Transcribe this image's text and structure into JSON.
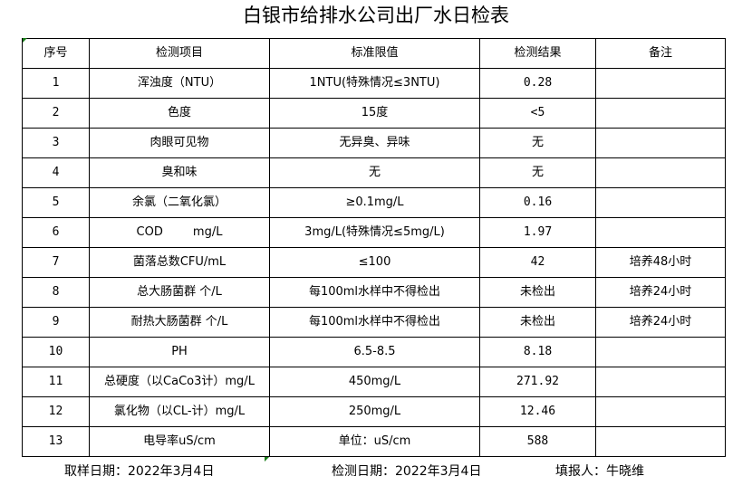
{
  "title": "白银市给排水公司出厂水日检表",
  "headers": [
    "序号",
    "检测项目",
    "标准限值",
    "检测结果",
    "备注"
  ],
  "rows": [
    [
      "1",
      "浑浊度（NTU）",
      "1NTU(特殊情况≤3NTU)",
      "0.28",
      ""
    ],
    [
      "2",
      "色度",
      "15度",
      "<5",
      ""
    ],
    [
      "3",
      "肉眼可见物",
      "无异臭、异味",
      "无",
      ""
    ],
    [
      "4",
      "臭和味",
      "无",
      "无",
      ""
    ],
    [
      "5",
      "余氯（二氧化氯）",
      "≥0.1mg/L",
      "0.16",
      ""
    ],
    [
      "6",
      "COD        mg/L",
      "3mg/L(特殊情况≤5mg/L)",
      "1.97",
      ""
    ],
    [
      "7",
      "菌落总数CFU/mL",
      "≤100",
      "42",
      "培养48小时"
    ],
    [
      "8",
      "总大肠菌群 个/L",
      "每100ml水样中不得检出",
      "未检出",
      "培养24小时"
    ],
    [
      "9",
      "耐热大肠菌群 个/L",
      "每100ml水样中不得检出",
      "未检出",
      "培养24小时"
    ],
    [
      "10",
      "PH",
      "6.5-8.5",
      "8.18",
      ""
    ],
    [
      "11",
      "总硬度（以CaCo3计）mg/L",
      "450mg/L",
      "271.92",
      ""
    ],
    [
      "12",
      "氯化物（以CL-计）mg/L",
      "250mg/L",
      "12.46",
      ""
    ],
    [
      "13",
      "电导率uS/cm",
      "单位：uS/cm",
      "588",
      ""
    ]
  ],
  "footer": {
    "sampling_date": "取样日期：2022年3月4日",
    "test_date": "检测日期：2022年3月4日",
    "reporter": "填报人：牛晓维"
  },
  "colors": {
    "cell_marker": "#1a7f1a"
  }
}
